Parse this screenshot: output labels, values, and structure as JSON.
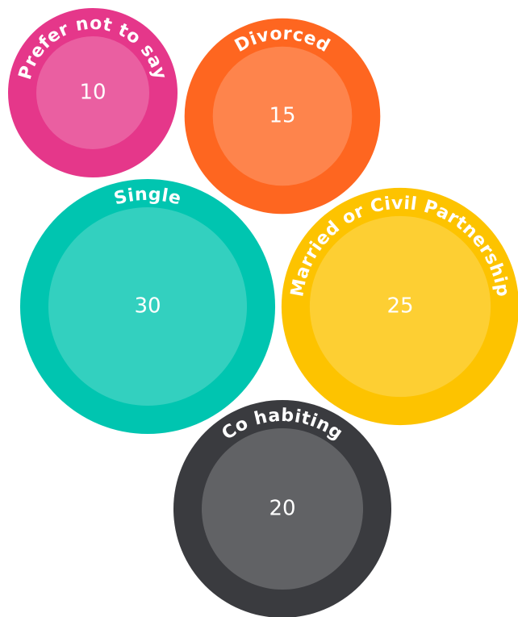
{
  "chart_data": {
    "type": "bubble",
    "categories": [
      "Prefer not to say",
      "Divorced",
      "Single",
      "Married or Civil Partnership",
      "Co habiting"
    ],
    "values": [
      10,
      15,
      30,
      25,
      20
    ],
    "colors": [
      "#e5378a",
      "#fe6620",
      "#00c5b0",
      "#fdc300",
      "#3a3b3f"
    ]
  }
}
